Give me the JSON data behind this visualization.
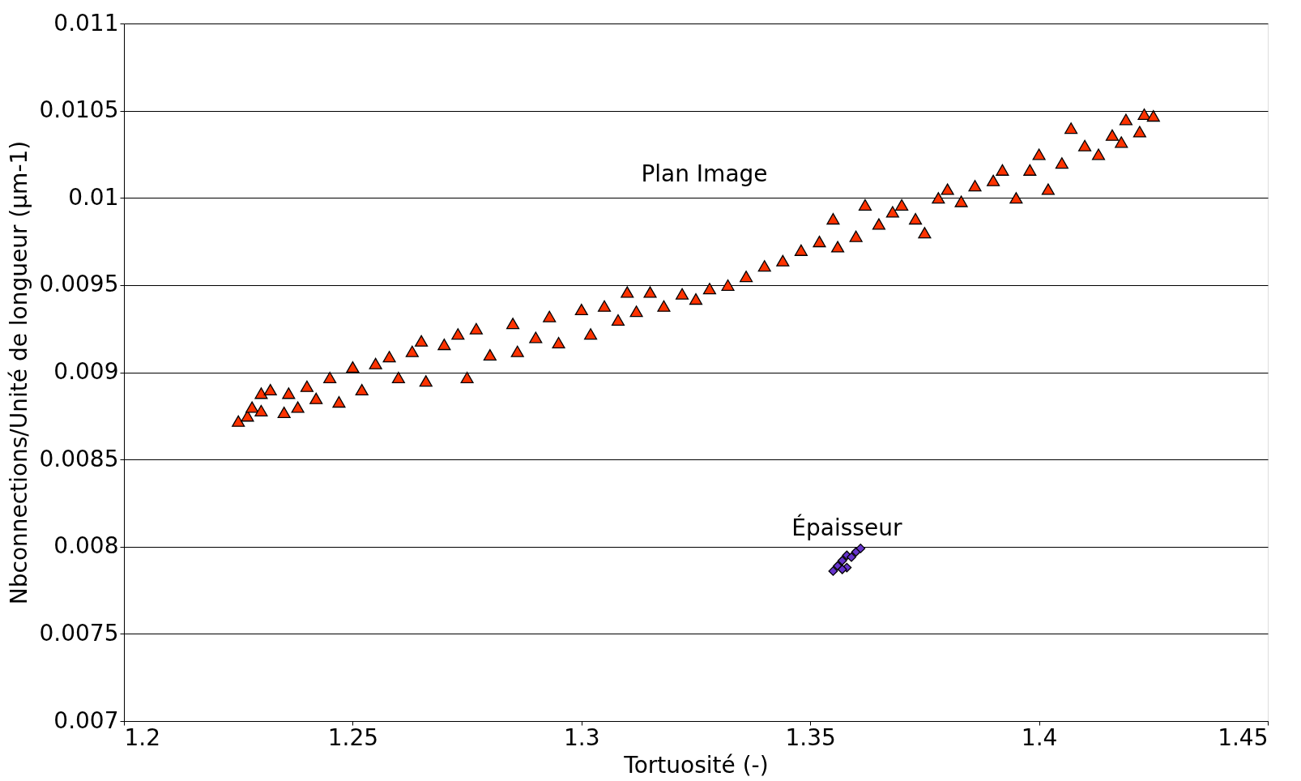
{
  "chart_data": {
    "type": "scatter",
    "xlabel": "Tortuosité (-)",
    "ylabel": "Nbconnections/Unité de longueur (µm-1)",
    "xlim": [
      1.2,
      1.45
    ],
    "xticks": [
      1.2,
      1.25,
      1.3,
      1.35,
      1.4,
      1.45
    ],
    "ylim": [
      0.007,
      0.011
    ],
    "yticks": [
      0.007,
      0.0075,
      0.008,
      0.0085,
      0.009,
      0.0095,
      0.01,
      0.0105,
      0.011
    ],
    "grid": "y",
    "series": [
      {
        "name": "Plan Image",
        "color": "#ff3300",
        "marker": "triangle",
        "x": [
          1.225,
          1.227,
          1.228,
          1.23,
          1.23,
          1.232,
          1.235,
          1.236,
          1.238,
          1.24,
          1.242,
          1.245,
          1.247,
          1.25,
          1.252,
          1.255,
          1.258,
          1.26,
          1.263,
          1.265,
          1.266,
          1.27,
          1.273,
          1.275,
          1.277,
          1.28,
          1.285,
          1.286,
          1.29,
          1.293,
          1.295,
          1.3,
          1.302,
          1.305,
          1.308,
          1.31,
          1.312,
          1.315,
          1.318,
          1.322,
          1.325,
          1.328,
          1.332,
          1.336,
          1.34,
          1.344,
          1.348,
          1.352,
          1.355,
          1.356,
          1.36,
          1.362,
          1.365,
          1.368,
          1.37,
          1.373,
          1.375,
          1.378,
          1.38,
          1.383,
          1.386,
          1.39,
          1.392,
          1.395,
          1.398,
          1.4,
          1.402,
          1.405,
          1.407,
          1.41,
          1.413,
          1.416,
          1.418,
          1.419,
          1.422,
          1.423,
          1.425
        ],
        "values": [
          0.00872,
          0.00875,
          0.0088,
          0.00888,
          0.00878,
          0.0089,
          0.00877,
          0.00888,
          0.0088,
          0.00892,
          0.00885,
          0.00897,
          0.00883,
          0.00903,
          0.0089,
          0.00905,
          0.00909,
          0.00897,
          0.00912,
          0.00918,
          0.00895,
          0.00916,
          0.00922,
          0.00897,
          0.00925,
          0.0091,
          0.00928,
          0.00912,
          0.0092,
          0.00932,
          0.00917,
          0.00936,
          0.00922,
          0.00938,
          0.0093,
          0.00946,
          0.00935,
          0.00946,
          0.00938,
          0.00945,
          0.00942,
          0.00948,
          0.0095,
          0.00955,
          0.00961,
          0.00964,
          0.0097,
          0.00975,
          0.00988,
          0.00972,
          0.00978,
          0.00996,
          0.00985,
          0.00992,
          0.00996,
          0.00988,
          0.0098,
          0.01,
          0.01005,
          0.00998,
          0.01007,
          0.0101,
          0.01016,
          0.01,
          0.01016,
          0.01025,
          0.01005,
          0.0102,
          0.0104,
          0.0103,
          0.01025,
          0.01036,
          0.01032,
          0.01045,
          0.01038,
          0.01048,
          0.01047
        ]
      },
      {
        "name": "Épaisseur",
        "color": "#6633cc",
        "marker": "diamond",
        "x": [
          1.355,
          1.356,
          1.357,
          1.358,
          1.358,
          1.359,
          1.36,
          1.361,
          1.357
        ],
        "values": [
          0.00786,
          0.00789,
          0.00792,
          0.00788,
          0.00795,
          0.00794,
          0.00797,
          0.00799,
          0.00787
        ]
      }
    ]
  }
}
